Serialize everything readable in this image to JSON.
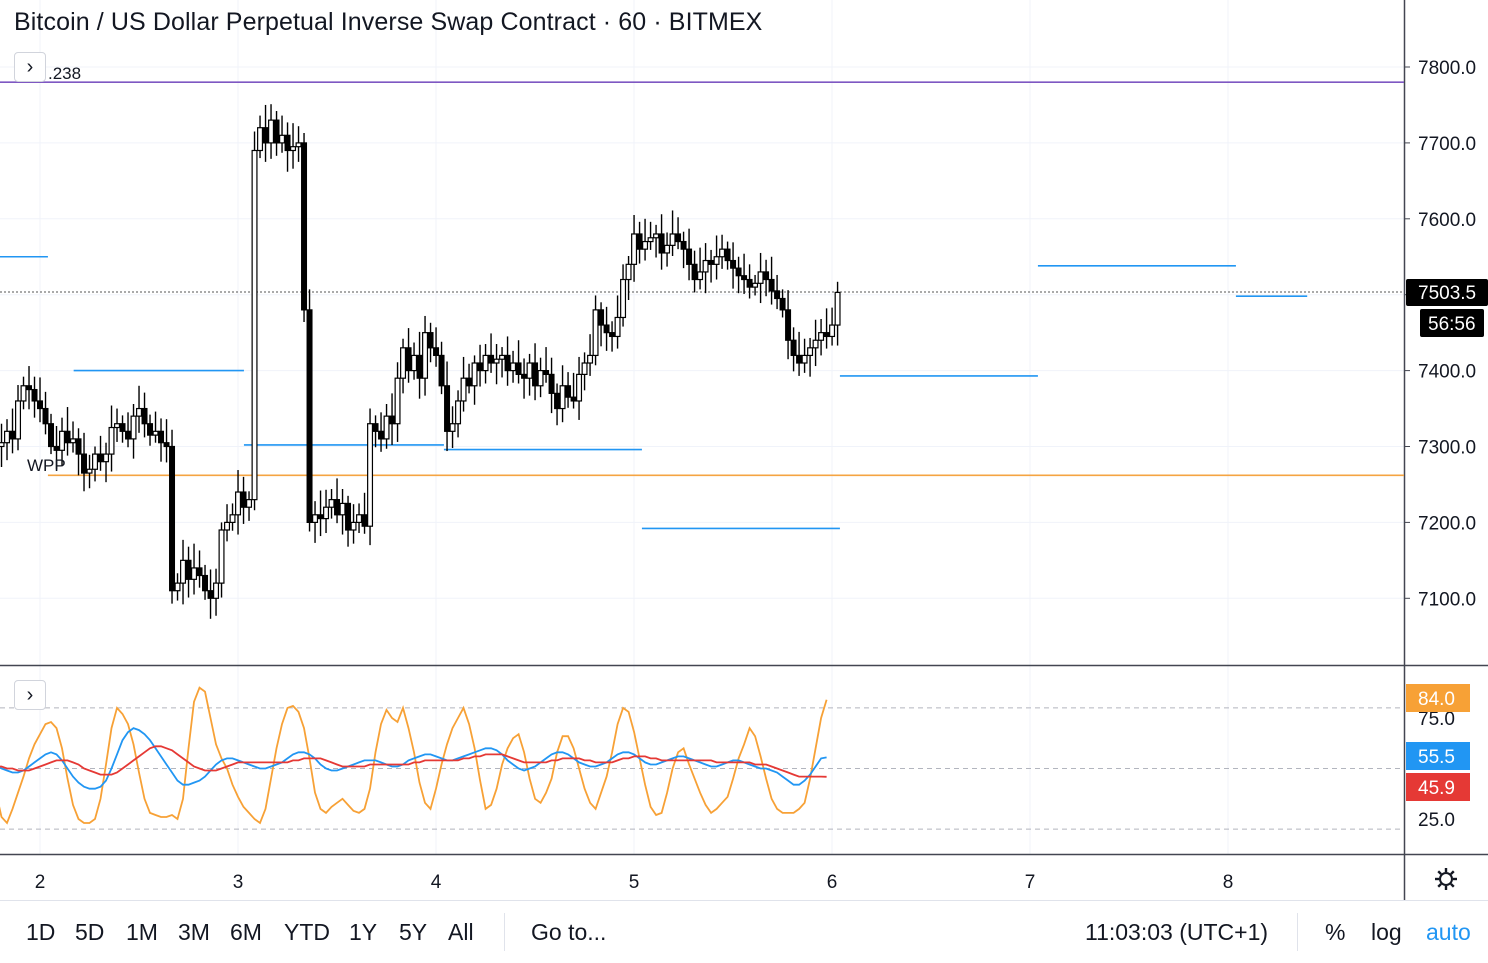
{
  "header": {
    "title": "Bitcoin / US Dollar Perpetual Inverse Swap Contract · 60 · BITMEX",
    "collapse_icon": "chevron-right-icon"
  },
  "chart_data": [
    {
      "type": "candlestick",
      "title": "Bitcoin / US Dollar Perpetual Inverse Swap Contract · 60 · BITMEX",
      "y_ticks": [
        "7800.0",
        "7700.0",
        "7600.0",
        "7500.0",
        "7400.0",
        "7300.0",
        "7200.0",
        "7100.0"
      ],
      "ylim": [
        7010,
        7880
      ],
      "x_ticks": [
        "2",
        "3",
        "4",
        "5",
        "6",
        "7",
        "8"
      ],
      "last_price": {
        "value": "7503.5",
        "countdown": "56:56"
      },
      "annotations": {
        "fib_label": ".238",
        "wpp_label": "WPP"
      },
      "level_lines": [
        {
          "color": "#7e57c2",
          "price": 7780,
          "from_day": 1.0,
          "to_day": 8.9
        },
        {
          "color": "#f5a442",
          "price": 7262,
          "from_day": 2.04,
          "to_day": 8.9
        },
        {
          "color": "#2196f3",
          "price": 7550,
          "from_day": 1.0,
          "to_day": 2.04
        },
        {
          "color": "#2196f3",
          "price": 7400,
          "from_day": 2.17,
          "to_day": 3.03
        },
        {
          "color": "#2196f3",
          "price": 7302,
          "from_day": 3.03,
          "to_day": 4.04
        },
        {
          "color": "#2196f3",
          "price": 7296,
          "from_day": 4.04,
          "to_day": 5.04
        },
        {
          "color": "#2196f3",
          "price": 7192,
          "from_day": 5.04,
          "to_day": 6.04
        },
        {
          "color": "#2196f3",
          "price": 7393,
          "from_day": 6.04,
          "to_day": 7.04
        },
        {
          "color": "#2196f3",
          "price": 7538,
          "from_day": 7.04,
          "to_day": 8.04
        },
        {
          "color": "#2196f3",
          "price": 7498,
          "from_day": 8.04,
          "to_day": 8.4
        }
      ],
      "candles": {
        "start_day": 1.0,
        "step_day": 0.02778,
        "close": [
          7335,
          7360,
          7390,
          7380,
          7365,
          7375,
          7400,
          7395,
          7385,
          7370,
          7340,
          7310,
          7270,
          7265,
          7230,
          7250,
          7290,
          7330,
          7325,
          7295,
          7305,
          7315,
          7300,
          7290,
          7280,
          7270,
          7275,
          7285,
          7300,
          7305,
          7320,
          7310,
          7360,
          7380,
          7375,
          7360,
          7350,
          7330,
          7300,
          7295,
          7320,
          7305,
          7310,
          7290,
          7265,
          7270,
          7290,
          7280,
          7290,
          7325,
          7330,
          7320,
          7310,
          7340,
          7350,
          7330,
          7315,
          7320,
          7305,
          7300,
          7110,
          7120,
          7150,
          7125,
          7140,
          7130,
          7110,
          7100,
          7120,
          7190,
          7200,
          7210,
          7240,
          7220,
          7230,
          7690,
          7720,
          7700,
          7730,
          7700,
          7710,
          7690,
          7695,
          7700,
          7480,
          7200,
          7210,
          7205,
          7220,
          7230,
          7210,
          7225,
          7190,
          7200,
          7210,
          7195,
          7330,
          7320,
          7310,
          7340,
          7330,
          7390,
          7430,
          7400,
          7420,
          7390,
          7450,
          7430,
          7420,
          7380,
          7320,
          7330,
          7360,
          7390,
          7380,
          7410,
          7400,
          7420,
          7410,
          7415,
          7420,
          7400,
          7410,
          7395,
          7390,
          7410,
          7380,
          7400,
          7395,
          7370,
          7350,
          7380,
          7365,
          7360,
          7395,
          7410,
          7420,
          7480,
          7460,
          7450,
          7445,
          7470,
          7520,
          7540,
          7580,
          7560,
          7570,
          7575,
          7580,
          7555,
          7565,
          7580,
          7570,
          7560,
          7540,
          7520,
          7530,
          7545,
          7540,
          7550,
          7560,
          7545,
          7535,
          7525,
          7520,
          7510,
          7515,
          7530,
          7520,
          7505,
          7495,
          7480,
          7440,
          7420,
          7410,
          7420,
          7430,
          7440,
          7450,
          7445,
          7460,
          7503
        ]
      }
    },
    {
      "type": "line",
      "y_ticks": [
        "75.0",
        "25.0"
      ],
      "ylim": [
        5,
        100
      ],
      "dashed_levels": [
        80,
        50,
        20
      ],
      "series": [
        {
          "color": "#f7a136",
          "value_label": "84.0",
          "values": [
            40,
            45,
            62,
            75,
            77,
            75,
            65,
            52,
            40,
            32,
            28,
            33,
            40,
            55,
            65,
            72,
            68,
            57,
            42,
            34,
            31,
            40,
            55,
            67,
            70,
            67,
            60,
            50,
            38,
            26,
            23,
            30,
            38,
            46,
            55,
            62,
            67,
            72,
            73,
            70,
            60,
            45,
            32,
            25,
            23,
            23,
            25,
            35,
            52,
            70,
            80,
            77,
            72,
            62,
            48,
            35,
            28,
            27,
            26,
            26,
            27,
            25,
            35,
            60,
            83,
            90,
            88,
            75,
            62,
            55,
            50,
            42,
            36,
            31,
            28,
            25,
            23,
            30,
            45,
            60,
            72,
            80,
            81,
            78,
            70,
            55,
            38,
            30,
            28,
            31,
            33,
            35,
            32,
            29,
            28,
            30,
            40,
            58,
            72,
            79,
            75,
            73,
            80,
            70,
            58,
            43,
            33,
            30,
            40,
            52,
            62,
            70,
            75,
            80,
            72,
            60,
            44,
            30,
            32,
            40,
            52,
            60,
            65,
            67,
            58,
            45,
            35,
            33,
            38,
            45,
            58,
            66,
            66,
            60,
            50,
            40,
            33,
            30,
            38,
            46,
            58,
            72,
            80,
            78,
            68,
            55,
            42,
            31,
            27,
            28,
            38,
            50,
            58,
            60,
            52,
            45,
            38,
            32,
            28,
            30,
            33,
            36,
            45,
            55,
            62,
            70,
            66,
            56,
            45,
            35,
            30,
            28,
            28,
            28,
            30,
            33,
            45,
            60,
            75,
            84
          ]
        },
        {
          "color": "#2196f3",
          "value_label": "55.5",
          "values": [
            45,
            48,
            52,
            54,
            54,
            52,
            48,
            44,
            42,
            43,
            45,
            46,
            46,
            47,
            48,
            49,
            49,
            48,
            46,
            45,
            44,
            46,
            48,
            51,
            54,
            56,
            56,
            54,
            52,
            50,
            49,
            48,
            48,
            49,
            51,
            53,
            55,
            57,
            58,
            57,
            54,
            50,
            46,
            43,
            41,
            40,
            40,
            41,
            44,
            50,
            57,
            64,
            68,
            70,
            69,
            67,
            64,
            60,
            56,
            52,
            48,
            44,
            42,
            42,
            43,
            44,
            46,
            49,
            52,
            54,
            55,
            55,
            54,
            53,
            52,
            51,
            50,
            50,
            51,
            52,
            53,
            55,
            57,
            58,
            58,
            57,
            55,
            52,
            50,
            49,
            49,
            50,
            51,
            52,
            53,
            54,
            54,
            54,
            53,
            52,
            51,
            51,
            52,
            54,
            55,
            56,
            57,
            57,
            56,
            55,
            54,
            54,
            55,
            56,
            57,
            58,
            59,
            60,
            60,
            59,
            57,
            54,
            52,
            50,
            49,
            50,
            51,
            53,
            55,
            57,
            58,
            58,
            57,
            55,
            53,
            52,
            51,
            51,
            52,
            53,
            55,
            57,
            58,
            58,
            57,
            55,
            53,
            52,
            52,
            53,
            54,
            55,
            56,
            56,
            55,
            54,
            53,
            52,
            51,
            51,
            52,
            53,
            54,
            54,
            53,
            52,
            51,
            50,
            50,
            49,
            48,
            46,
            44,
            42,
            42,
            44,
            47,
            51,
            55,
            55.5
          ]
        },
        {
          "color": "#e53935",
          "value_label": "45.9",
          "values": [
            44,
            45,
            46,
            47,
            48,
            48,
            48,
            47,
            46,
            45,
            44,
            44,
            44,
            44,
            45,
            45,
            46,
            46,
            46,
            46,
            46,
            46,
            47,
            48,
            49,
            50,
            51,
            51,
            51,
            51,
            50,
            50,
            49,
            49,
            49,
            50,
            51,
            52,
            53,
            54,
            54,
            54,
            53,
            52,
            50,
            49,
            48,
            47,
            47,
            47,
            48,
            50,
            52,
            54,
            56,
            58,
            60,
            61,
            61,
            60,
            59,
            57,
            55,
            53,
            51,
            50,
            49,
            49,
            49,
            50,
            51,
            52,
            53,
            53,
            53,
            53,
            53,
            53,
            53,
            53,
            53,
            53,
            54,
            54,
            55,
            55,
            55,
            55,
            54,
            53,
            52,
            51,
            51,
            51,
            51,
            51,
            52,
            52,
            52,
            52,
            52,
            52,
            52,
            52,
            53,
            53,
            54,
            54,
            54,
            54,
            54,
            54,
            54,
            55,
            55,
            56,
            56,
            57,
            57,
            57,
            57,
            56,
            55,
            54,
            53,
            53,
            53,
            53,
            53,
            54,
            54,
            55,
            55,
            55,
            55,
            54,
            54,
            53,
            53,
            53,
            53,
            54,
            55,
            55,
            56,
            56,
            56,
            55,
            55,
            54,
            54,
            54,
            54,
            54,
            54,
            54,
            54,
            54,
            54,
            53,
            53,
            53,
            53,
            53,
            53,
            53,
            52,
            52,
            52,
            51,
            50,
            49,
            48,
            47,
            46,
            46,
            46,
            46,
            46,
            45.9
          ]
        }
      ]
    }
  ],
  "toolbar": {
    "ranges": [
      "1D",
      "5D",
      "1M",
      "3M",
      "6M",
      "YTD",
      "1Y",
      "5Y",
      "All"
    ],
    "goto_label": "Go to...",
    "clock": "11:03:03 (UTC+1)",
    "percent_label": "%",
    "log_label": "log",
    "auto_label": "auto",
    "settings_icon": "gear-icon"
  },
  "colors": {
    "accent": "#2196f3",
    "axis_text": "#131722",
    "grid": "#f0f3fa"
  }
}
